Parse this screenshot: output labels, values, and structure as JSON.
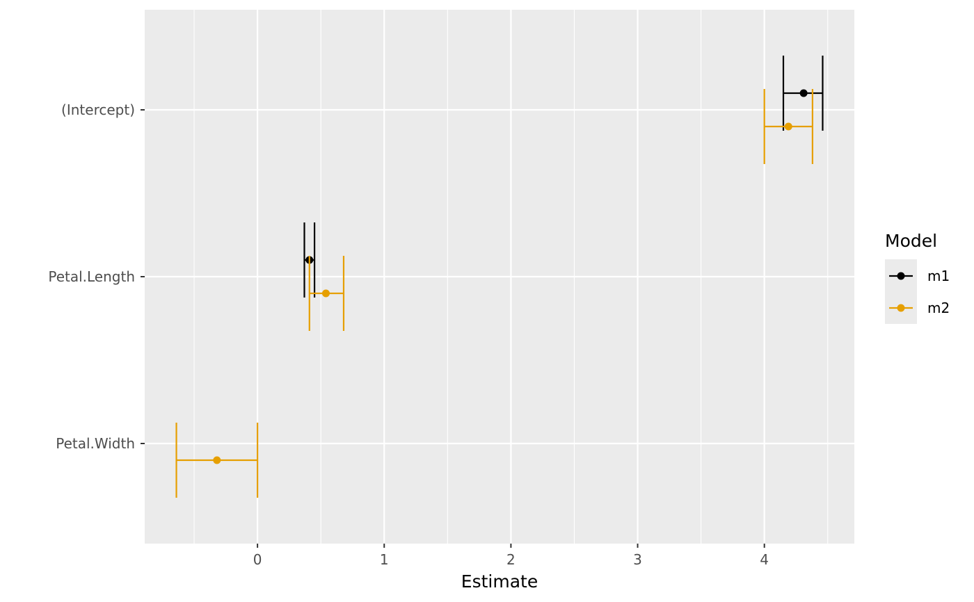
{
  "chart_data": {
    "type": "scatter",
    "subtype": "coefficient-plot",
    "xlabel": "Estimate",
    "ylabel": "",
    "xlim": [
      -0.89,
      4.71
    ],
    "x_ticks": [
      0,
      1,
      2,
      3,
      4
    ],
    "x_tick_labels": [
      "0",
      "1",
      "2",
      "3",
      "4"
    ],
    "x_minor_ticks": [
      -0.5,
      0.5,
      1.5,
      2.5,
      3.5,
      4.5
    ],
    "categories": [
      "(Intercept)",
      "Petal.Length",
      "Petal.Width"
    ],
    "grid": true,
    "legend": {
      "title": "Model",
      "position": "right"
    },
    "series": [
      {
        "name": "m1",
        "color": "#000000",
        "points": [
          {
            "term": "(Intercept)",
            "estimate": 4.31,
            "lower": 4.15,
            "upper": 4.46
          },
          {
            "term": "Petal.Length",
            "estimate": 0.41,
            "lower": 0.37,
            "upper": 0.45
          }
        ]
      },
      {
        "name": "m2",
        "color": "#E69F00",
        "points": [
          {
            "term": "(Intercept)",
            "estimate": 4.19,
            "lower": 4.0,
            "upper": 4.38
          },
          {
            "term": "Petal.Length",
            "estimate": 0.54,
            "lower": 0.41,
            "upper": 0.68
          },
          {
            "term": "Petal.Width",
            "estimate": -0.32,
            "lower": -0.64,
            "upper": 0.0
          }
        ]
      }
    ]
  }
}
